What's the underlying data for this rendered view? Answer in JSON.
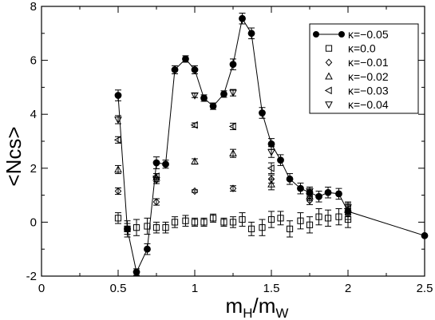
{
  "chart_data": {
    "type": "scatter",
    "xlabel": {
      "main": "m",
      "sub1": "H",
      "sep": "/m",
      "sub2": "W"
    },
    "ylabel": "<Ncs>",
    "xlim": [
      0,
      2.5
    ],
    "ylim": [
      -2,
      8
    ],
    "x_ticks": [
      0,
      0.5,
      1,
      1.5,
      2,
      2.5
    ],
    "x_tick_labels": [
      "0",
      "0.5",
      "1",
      "1.5",
      "2",
      "2.5"
    ],
    "y_ticks": [
      -2,
      0,
      2,
      4,
      6,
      8
    ],
    "y_tick_labels": [
      "-2",
      "0",
      "2",
      "4",
      "6",
      "8"
    ],
    "legend_position": "top-right",
    "series": [
      {
        "name": "κ=−0.05",
        "marker": "filled-circle",
        "line": true,
        "x": [
          0.5,
          0.56,
          0.62,
          0.69,
          0.75,
          0.81,
          0.87,
          0.94,
          1.0,
          1.06,
          1.12,
          1.19,
          1.25,
          1.31,
          1.37,
          1.44,
          1.5,
          1.56,
          1.62,
          1.69,
          1.75,
          1.81,
          1.87,
          1.94,
          2.0,
          2.5
        ],
        "y": [
          4.7,
          -0.25,
          -1.85,
          -1.0,
          2.2,
          2.15,
          5.65,
          6.05,
          5.65,
          4.6,
          4.3,
          4.75,
          5.85,
          7.55,
          7.0,
          4.05,
          2.9,
          2.3,
          1.6,
          1.25,
          1.1,
          0.95,
          1.1,
          1.05,
          0.4,
          -0.5
        ],
        "err": [
          0.2,
          0.2,
          0.12,
          0.2,
          0.22,
          0.15,
          0.15,
          0.12,
          0.15,
          0.12,
          0.12,
          0.12,
          0.2,
          0.2,
          0.2,
          0.2,
          0.2,
          0.2,
          0.2,
          0.2,
          0.2,
          0.2,
          0.2,
          0.2,
          0.2,
          0.0
        ]
      },
      {
        "name": "κ=0.0",
        "marker": "square",
        "line": false,
        "x": [
          0.5,
          0.56,
          0.62,
          0.69,
          0.75,
          0.81,
          0.87,
          0.94,
          1.0,
          1.06,
          1.12,
          1.19,
          1.25,
          1.31,
          1.37,
          1.44,
          1.5,
          1.56,
          1.62,
          1.69,
          1.75,
          1.81,
          1.87,
          1.94,
          2.0
        ],
        "y": [
          0.15,
          -0.25,
          -0.2,
          -0.15,
          -0.2,
          -0.2,
          0.0,
          0.05,
          0.0,
          0.0,
          0.15,
          0.0,
          0.0,
          0.1,
          -0.25,
          -0.2,
          0.1,
          0.15,
          -0.25,
          0.05,
          -0.1,
          0.2,
          0.15,
          0.2,
          0.1
        ],
        "err": [
          0.2,
          0.3,
          0.3,
          0.3,
          0.2,
          0.2,
          0.2,
          0.2,
          0.15,
          0.15,
          0.15,
          0.15,
          0.2,
          0.25,
          0.25,
          0.3,
          0.3,
          0.25,
          0.3,
          0.3,
          0.3,
          0.3,
          0.3,
          0.3,
          0.3
        ]
      },
      {
        "name": "κ=−0.01",
        "marker": "diamond",
        "line": false,
        "x": [
          0.5,
          0.75,
          1.0,
          1.25,
          1.5,
          1.75,
          2.0
        ],
        "y": [
          1.15,
          0.75,
          1.15,
          1.25,
          1.6,
          0.8,
          0.3
        ],
        "err": [
          0.12,
          0.12,
          0.05,
          0.1,
          0.15,
          0.15,
          0.2
        ]
      },
      {
        "name": "κ=−0.02",
        "marker": "triangle-up",
        "line": false,
        "x": [
          0.5,
          0.75,
          1.0,
          1.25,
          1.5,
          1.75,
          2.0
        ],
        "y": [
          1.95,
          1.65,
          2.25,
          2.55,
          1.4,
          0.95,
          0.45
        ],
        "err": [
          0.15,
          0.15,
          0.1,
          0.15,
          0.2,
          0.15,
          0.2
        ]
      },
      {
        "name": "κ=−0.03",
        "marker": "triangle-left",
        "line": false,
        "x": [
          0.5,
          0.75,
          1.0,
          1.25,
          1.5,
          1.75,
          2.0
        ],
        "y": [
          3.05,
          1.7,
          3.6,
          3.55,
          2.0,
          1.05,
          0.5
        ],
        "err": [
          0.12,
          0.1,
          0.08,
          0.12,
          0.2,
          0.15,
          0.2
        ]
      },
      {
        "name": "κ=−0.04",
        "marker": "triangle-down",
        "line": false,
        "x": [
          0.5,
          0.75,
          1.0,
          1.25,
          1.5,
          1.75,
          2.0
        ],
        "y": [
          3.8,
          1.55,
          4.7,
          4.8,
          2.6,
          1.15,
          0.55
        ],
        "err": [
          0.15,
          0.12,
          0.08,
          0.12,
          0.2,
          0.15,
          0.2
        ]
      }
    ]
  }
}
